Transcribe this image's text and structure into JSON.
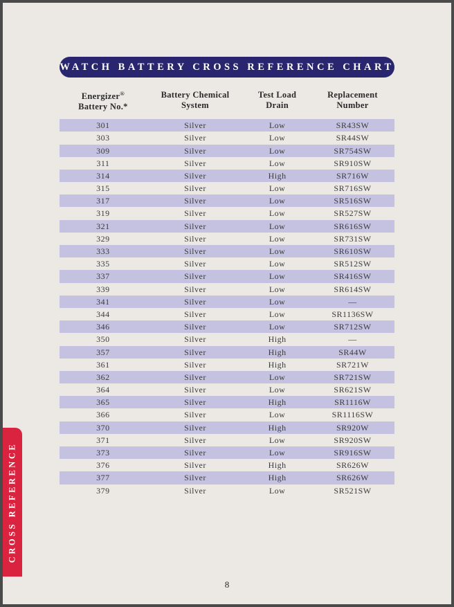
{
  "title": "WATCH BATTERY CROSS REFERENCE CHART",
  "tab_label": "CROSS REFERENCE",
  "page_number": "8",
  "table": {
    "headers": {
      "col1_line1": "Energizer",
      "col1_sup": "®",
      "col1_line2": "Battery No.*",
      "col2_line1": "Battery Chemical",
      "col2_line2": "System",
      "col3_line1": "Test Load",
      "col3_line2": "Drain",
      "col4_line1": "Replacement",
      "col4_line2": "Number"
    },
    "row_colors": {
      "odd": "#c5c2e1",
      "even": "transparent"
    },
    "rows": [
      {
        "battery": "301",
        "chem": "Silver",
        "drain": "Low",
        "repl": "SR43SW"
      },
      {
        "battery": "303",
        "chem": "Silver",
        "drain": "Low",
        "repl": "SR44SW"
      },
      {
        "battery": "309",
        "chem": "Silver",
        "drain": "Low",
        "repl": "SR754SW"
      },
      {
        "battery": "311",
        "chem": "Silver",
        "drain": "Low",
        "repl": "SR910SW"
      },
      {
        "battery": "314",
        "chem": "Silver",
        "drain": "High",
        "repl": "SR716W"
      },
      {
        "battery": "315",
        "chem": "Silver",
        "drain": "Low",
        "repl": "SR716SW"
      },
      {
        "battery": "317",
        "chem": "Silver",
        "drain": "Low",
        "repl": "SR516SW"
      },
      {
        "battery": "319",
        "chem": "Silver",
        "drain": "Low",
        "repl": "SR527SW"
      },
      {
        "battery": "321",
        "chem": "Silver",
        "drain": "Low",
        "repl": "SR616SW"
      },
      {
        "battery": "329",
        "chem": "Silver",
        "drain": "Low",
        "repl": "SR731SW"
      },
      {
        "battery": "333",
        "chem": "Silver",
        "drain": "Low",
        "repl": "SR610SW"
      },
      {
        "battery": "335",
        "chem": "Silver",
        "drain": "Low",
        "repl": "SR512SW"
      },
      {
        "battery": "337",
        "chem": "Silver",
        "drain": "Low",
        "repl": "SR416SW"
      },
      {
        "battery": "339",
        "chem": "Silver",
        "drain": "Low",
        "repl": "SR614SW"
      },
      {
        "battery": "341",
        "chem": "Silver",
        "drain": "Low",
        "repl": "—"
      },
      {
        "battery": "344",
        "chem": "Silver",
        "drain": "Low",
        "repl": "SR1136SW"
      },
      {
        "battery": "346",
        "chem": "Silver",
        "drain": "Low",
        "repl": "SR712SW"
      },
      {
        "battery": "350",
        "chem": "Silver",
        "drain": "High",
        "repl": "—"
      },
      {
        "battery": "357",
        "chem": "Silver",
        "drain": "High",
        "repl": "SR44W"
      },
      {
        "battery": "361",
        "chem": "Silver",
        "drain": "High",
        "repl": "SR721W"
      },
      {
        "battery": "362",
        "chem": "Silver",
        "drain": "Low",
        "repl": "SR721SW"
      },
      {
        "battery": "364",
        "chem": "Silver",
        "drain": "Low",
        "repl": "SR621SW"
      },
      {
        "battery": "365",
        "chem": "Silver",
        "drain": "High",
        "repl": "SR1116W"
      },
      {
        "battery": "366",
        "chem": "Silver",
        "drain": "Low",
        "repl": "SR1116SW"
      },
      {
        "battery": "370",
        "chem": "Silver",
        "drain": "High",
        "repl": "SR920W"
      },
      {
        "battery": "371",
        "chem": "Silver",
        "drain": "Low",
        "repl": "SR920SW"
      },
      {
        "battery": "373",
        "chem": "Silver",
        "drain": "Low",
        "repl": "SR916SW"
      },
      {
        "battery": "376",
        "chem": "Silver",
        "drain": "High",
        "repl": "SR626W"
      },
      {
        "battery": "377",
        "chem": "Silver",
        "drain": "High",
        "repl": "SR626W"
      },
      {
        "battery": "379",
        "chem": "Silver",
        "drain": "Low",
        "repl": "SR521SW"
      }
    ]
  }
}
